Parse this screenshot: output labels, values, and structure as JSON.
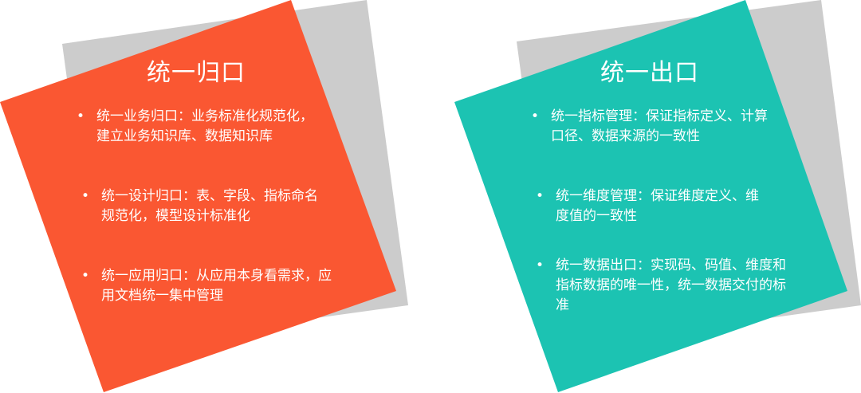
{
  "colors": {
    "shadow": "#cccccc",
    "left_card": "#fa5732",
    "right_card": "#1cc3b2",
    "text": "#ffffff"
  },
  "left_card": {
    "title": "统一归口",
    "bullets": [
      "统一业务归口：业务标准化规范化，建立业务知识库、数据知识库",
      "统一设计归口：表、字段、指标命名规范化，模型设计标准化",
      "统一应用归口：从应用本身看需求，应用文档统一集中管理"
    ]
  },
  "right_card": {
    "title": "统一出口",
    "bullets": [
      "统一指标管理：保证指标定义、计算口径、数据来源的一致性",
      "统一维度管理：保证维度定义、维度值的一致性",
      "统一数据出口：实现码、码值、维度和指标数据的唯一性，统一数据交付的标准"
    ]
  }
}
